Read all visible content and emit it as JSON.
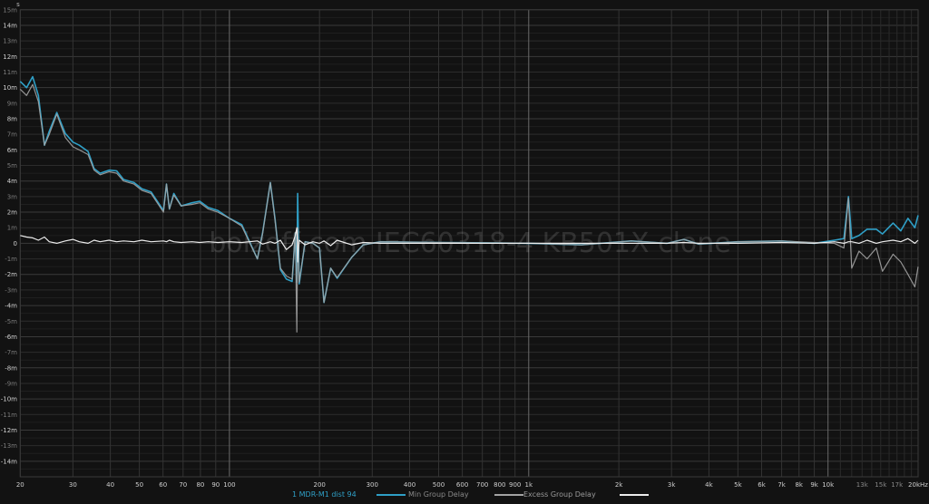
{
  "chart_data": {
    "type": "line",
    "title": "",
    "watermark": "boizoff.com IEC60318-4 KB501X clone",
    "y_unit_label": "s",
    "x_unit_label": "Hz",
    "x_scale": "log",
    "xlim": [
      20,
      20000
    ],
    "ylim": [
      -15,
      15
    ],
    "y_units": "ms",
    "grid": true,
    "legend_position": "bottom-center",
    "y_tick_labels": [
      "15m",
      "14m",
      "13m",
      "12m",
      "11m",
      "10m",
      "9m",
      "8m",
      "7m",
      "6m",
      "5m",
      "4m",
      "3m",
      "2m",
      "1m",
      "0",
      "-1m",
      "-2m",
      "-3m",
      "-4m",
      "-5m",
      "-6m",
      "-7m",
      "-8m",
      "-9m",
      "-10m",
      "-11m",
      "-12m",
      "-13m",
      "-14m"
    ],
    "y_tick_values": [
      15,
      14,
      13,
      12,
      11,
      10,
      9,
      8,
      7,
      6,
      5,
      4,
      3,
      2,
      1,
      0,
      -1,
      -2,
      -3,
      -4,
      -5,
      -6,
      -7,
      -8,
      -9,
      -10,
      -11,
      -12,
      -13,
      -14
    ],
    "x_tick_labels": [
      "20",
      "30",
      "40",
      "50",
      "60",
      "70",
      "80",
      "90",
      "100",
      "200",
      "300",
      "400",
      "500",
      "600",
      "700",
      "800",
      "900",
      "1k",
      "2k",
      "3k",
      "4k",
      "5k",
      "6k",
      "7k",
      "8k",
      "9k",
      "10k",
      "13k",
      "15k",
      "17k",
      "20kHz"
    ],
    "x_tick_values": [
      20,
      30,
      40,
      50,
      60,
      70,
      80,
      90,
      100,
      200,
      300,
      400,
      500,
      600,
      700,
      800,
      900,
      1000,
      2000,
      3000,
      4000,
      5000,
      6000,
      7000,
      8000,
      9000,
      10000,
      13000,
      15000,
      17000,
      20000
    ],
    "x": [
      20,
      21,
      22,
      23,
      24.1,
      25,
      26.5,
      28.3,
      30,
      31.5,
      33.7,
      35.3,
      37,
      39.6,
      42,
      44.3,
      48,
      51,
      54.7,
      60.2,
      61.6,
      63,
      65.2,
      69,
      75,
      79.6,
      85,
      91.5,
      100,
      110,
      124,
      129,
      137,
      142,
      148,
      155,
      162,
      166,
      168,
      169,
      171,
      179,
      190,
      200,
      207,
      218,
      229,
      256,
      280,
      320,
      500,
      1000,
      1500,
      2200,
      2900,
      3300,
      3700,
      5000,
      7000,
      9000,
      10500,
      11300,
      11700,
      12000,
      12700,
      13500,
      14500,
      15200,
      16500,
      17500,
      18500,
      19500,
      20000
    ],
    "series": [
      {
        "name": "1 MDR-M1 dist 94",
        "color": "#2f9fc6",
        "values": [
          10.4,
          10.0,
          10.7,
          9.5,
          6.3,
          7.2,
          8.4,
          7.05,
          6.5,
          6.3,
          5.9,
          4.8,
          4.5,
          4.7,
          4.65,
          4.1,
          3.9,
          3.5,
          3.3,
          2.1,
          3.8,
          2.2,
          3.2,
          2.4,
          2.6,
          2.7,
          2.3,
          2.1,
          1.6,
          1.2,
          -1.0,
          0.65,
          3.9,
          1.6,
          -1.7,
          -2.3,
          -2.45,
          0.65,
          -2.5,
          3.2,
          -2.6,
          0.1,
          0.0,
          -0.3,
          -3.8,
          -1.6,
          -2.25,
          -0.9,
          -0.1,
          0.1,
          0.05,
          0.0,
          -0.1,
          0.15,
          0.0,
          0.25,
          -0.05,
          0.1,
          0.15,
          0.0,
          0.2,
          0.3,
          3.0,
          0.3,
          0.5,
          0.9,
          0.9,
          0.6,
          1.3,
          0.8,
          1.6,
          1.0,
          1.8
        ]
      },
      {
        "name": "Min Group Delay",
        "color": "#a3a3a3",
        "values": [
          9.9,
          9.5,
          10.2,
          9.1,
          6.3,
          7.0,
          8.3,
          6.8,
          6.2,
          6.0,
          5.7,
          4.7,
          4.4,
          4.6,
          4.5,
          4.0,
          3.8,
          3.4,
          3.2,
          2.0,
          3.8,
          2.2,
          3.1,
          2.4,
          2.5,
          2.6,
          2.2,
          2.0,
          1.6,
          1.1,
          -1.0,
          0.6,
          3.9,
          1.5,
          -1.6,
          -2.1,
          -2.3,
          0.7,
          -5.7,
          1.0,
          -2.5,
          0.1,
          0.0,
          -0.3,
          -3.8,
          -1.6,
          -2.2,
          -0.9,
          -0.1,
          0.1,
          0.05,
          0.0,
          -0.1,
          0.15,
          0.0,
          0.25,
          -0.05,
          0.1,
          0.15,
          0.05,
          0.0,
          -0.3,
          2.9,
          -1.6,
          -0.5,
          -1.0,
          -0.3,
          -1.8,
          -0.7,
          -1.2,
          -2.0,
          -2.8,
          -1.5
        ]
      },
      {
        "name": "Excess Group Delay",
        "color": "#ececec",
        "values": [
          0.5,
          0.4,
          0.35,
          0.2,
          0.4,
          0.1,
          0.0,
          0.15,
          0.25,
          0.1,
          0.0,
          0.2,
          0.1,
          0.2,
          0.1,
          0.15,
          0.1,
          0.2,
          0.1,
          0.15,
          0.1,
          0.2,
          0.1,
          0.05,
          0.1,
          0.05,
          0.1,
          0.05,
          0.1,
          0.05,
          0.15,
          -0.05,
          0.1,
          0.0,
          0.2,
          -0.4,
          -0.1,
          0.5,
          1.0,
          -1.2,
          0.2,
          -0.1,
          0.1,
          0.0,
          0.15,
          -0.15,
          0.2,
          -0.1,
          0.05,
          0.0,
          0.0,
          0.0,
          0.0,
          0.0,
          0.0,
          0.05,
          0.0,
          0.0,
          0.05,
          0.0,
          0.1,
          0.0,
          0.1,
          0.1,
          0.0,
          0.2,
          0.0,
          0.1,
          0.2,
          0.1,
          0.3,
          0.0,
          0.2
        ]
      }
    ]
  }
}
